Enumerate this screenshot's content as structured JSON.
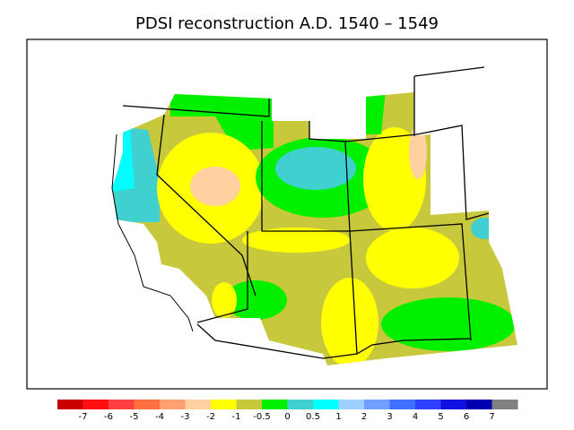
{
  "title": "PDSI reconstruction A.D. 1540 – 1549",
  "colorbar": {
    "labels": [
      "-7",
      "-6",
      "-5",
      "-4",
      "-3",
      "-2",
      "-1",
      "-0.5",
      "0",
      "0.5",
      "1",
      "2",
      "3",
      "4",
      "5",
      "6",
      "7"
    ],
    "colors": [
      "#c80000",
      "#ff1010",
      "#ff4040",
      "#ff7040",
      "#ffa070",
      "#ffd0a0",
      "#ffff00",
      "#c8c83c",
      "#00f000",
      "#40d0d0",
      "#00ffff",
      "#a0d0ff",
      "#70a0ff",
      "#4070ff",
      "#3040ff",
      "#1010e0",
      "#0000b0",
      "#808080"
    ]
  }
}
